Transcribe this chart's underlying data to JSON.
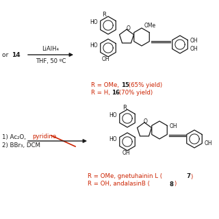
{
  "background_color": "#ffffff",
  "red_color": "#cc2200",
  "black_color": "#1a1a1a",
  "top_section": {
    "left_label": "or ",
    "left_bold": "14",
    "reagent_above": "LiAlH₄",
    "reagent_below": "THF, 50 ºC",
    "label1_r": "R = OMe, ",
    "label1_b": "15",
    "label1_rest": " (65% yield)",
    "label2_r": "R = H, ",
    "label2_b": "16",
    "label2_rest": " (70% yield)"
  },
  "bottom_section": {
    "reagent1_black": "1) Ac₂O, ",
    "reagent1_red": "pyridine",
    "reagent2": "2) BBr₃, DCM",
    "label1_r": "R = OMe, gnetuhainin L (",
    "label1_b": "7",
    "label1_rest": ")",
    "label2_r": "R = OH, andalasinB (",
    "label2_b": "8",
    "label2_rest": ")"
  }
}
